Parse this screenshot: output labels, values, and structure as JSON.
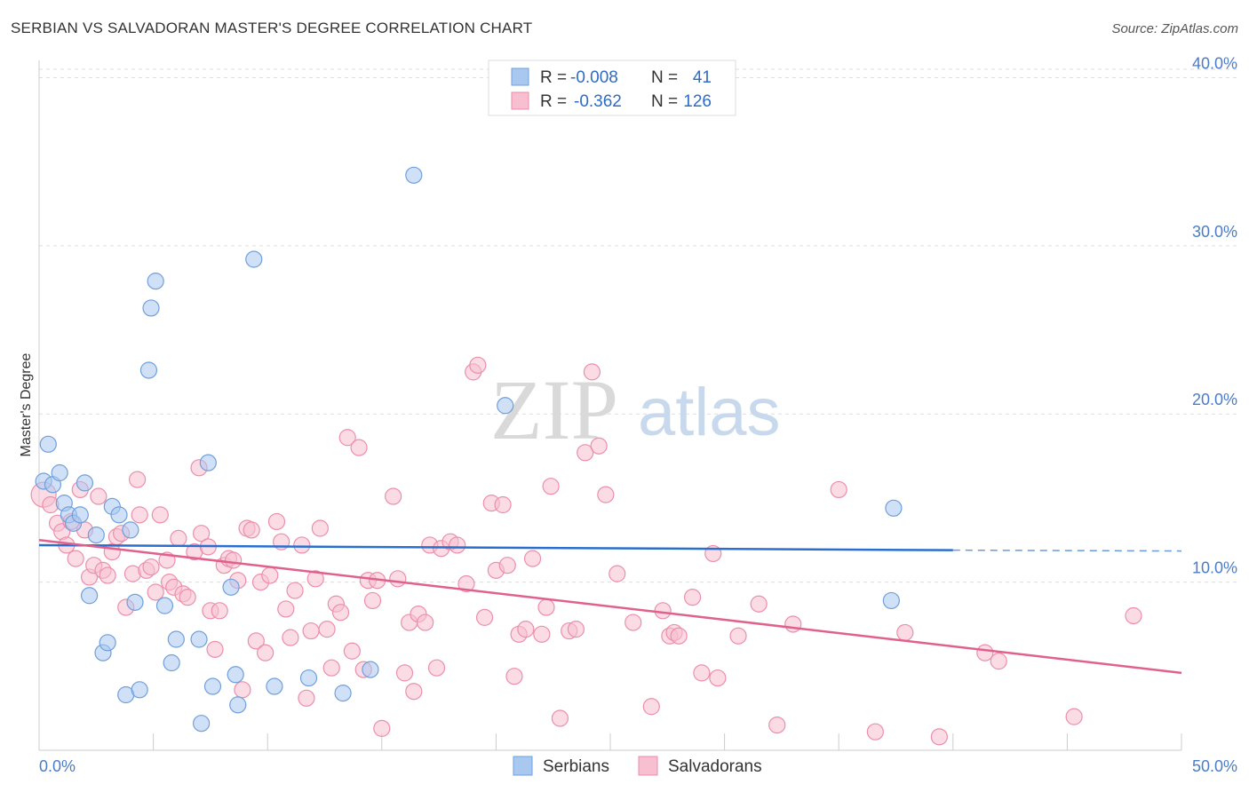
{
  "header": {
    "title": "SERBIAN VS SALVADORAN MASTER'S DEGREE CORRELATION CHART",
    "source": "Source: ZipAtlas.com"
  },
  "watermark": {
    "zip": "ZIP",
    "atlas": "atlas"
  },
  "colors": {
    "serbian_fill": "#a9c8f0",
    "serbian_stroke": "#6f9fdc",
    "serbian_line": "#2b6fce",
    "salvadoran_fill": "#f7bfd0",
    "salvadoran_stroke": "#ec8eab",
    "salvadoran_line": "#e0608e",
    "tick_label": "#4a7cc9",
    "grid": "#dddddd"
  },
  "legend": {
    "r_label": "R =",
    "n_label": "N =",
    "rows": [
      {
        "series": "Serbians",
        "r": "-0.008",
        "n": "41"
      },
      {
        "series": "Salvadorans",
        "r": "-0.362",
        "n": "126"
      }
    ]
  },
  "chart_data": {
    "type": "scatter",
    "title": "SERBIAN VS SALVADORAN MASTER'S DEGREE CORRELATION CHART",
    "xlabel": "",
    "ylabel": "Master's Degree",
    "xlim": [
      0,
      50
    ],
    "ylim": [
      0,
      40.5
    ],
    "x_tick_labels": [
      "0.0%",
      "50.0%"
    ],
    "y_ticks": [
      10,
      20,
      30,
      40
    ],
    "y_tick_labels": [
      "10.0%",
      "20.0%",
      "30.0%",
      "40.0%"
    ],
    "grid": true,
    "legend_position": "top-center",
    "series": [
      {
        "name": "Serbians",
        "r": -0.008,
        "n": 41,
        "trend": {
          "x0": 0,
          "y0": 12.2,
          "x1": 40,
          "y1": 11.9,
          "dashed_to": 50,
          "dashed_y": 11.85
        },
        "points": [
          [
            0.2,
            16.0
          ],
          [
            0.4,
            18.2
          ],
          [
            0.6,
            15.8
          ],
          [
            0.9,
            16.5
          ],
          [
            1.1,
            14.7
          ],
          [
            1.3,
            14.0
          ],
          [
            1.5,
            13.5
          ],
          [
            1.8,
            14.0
          ],
          [
            2.0,
            15.9
          ],
          [
            2.2,
            9.2
          ],
          [
            2.5,
            12.8
          ],
          [
            2.8,
            5.8
          ],
          [
            3.0,
            6.4
          ],
          [
            3.2,
            14.5
          ],
          [
            3.5,
            14.0
          ],
          [
            3.8,
            3.3
          ],
          [
            4.0,
            13.1
          ],
          [
            4.2,
            8.8
          ],
          [
            4.4,
            3.6
          ],
          [
            4.8,
            22.6
          ],
          [
            4.9,
            26.3
          ],
          [
            5.1,
            27.9
          ],
          [
            5.5,
            8.6
          ],
          [
            5.8,
            5.2
          ],
          [
            6.0,
            6.6
          ],
          [
            7.0,
            6.6
          ],
          [
            7.1,
            1.6
          ],
          [
            7.4,
            17.1
          ],
          [
            7.6,
            3.8
          ],
          [
            8.4,
            9.7
          ],
          [
            8.6,
            4.5
          ],
          [
            8.7,
            2.7
          ],
          [
            9.4,
            29.2
          ],
          [
            10.3,
            3.8
          ],
          [
            11.8,
            4.3
          ],
          [
            13.3,
            3.4
          ],
          [
            14.5,
            4.8
          ],
          [
            16.4,
            34.2
          ],
          [
            20.4,
            20.5
          ],
          [
            37.4,
            14.4
          ],
          [
            37.3,
            8.9
          ]
        ]
      },
      {
        "name": "Salvadorans",
        "r": -0.362,
        "n": 126,
        "trend": {
          "x0": 0,
          "y0": 12.5,
          "x1": 50,
          "y1": 4.6
        },
        "points": [
          [
            0.2,
            15.2
          ],
          [
            0.5,
            14.6
          ],
          [
            0.8,
            13.5
          ],
          [
            1.0,
            13.0
          ],
          [
            1.2,
            12.2
          ],
          [
            1.4,
            13.6
          ],
          [
            1.6,
            11.4
          ],
          [
            1.8,
            15.5
          ],
          [
            2.0,
            13.1
          ],
          [
            2.2,
            10.3
          ],
          [
            2.4,
            11.0
          ],
          [
            2.6,
            15.1
          ],
          [
            2.8,
            10.7
          ],
          [
            3.0,
            10.4
          ],
          [
            3.2,
            11.8
          ],
          [
            3.4,
            12.7
          ],
          [
            3.6,
            12.9
          ],
          [
            3.8,
            8.5
          ],
          [
            4.1,
            10.5
          ],
          [
            4.3,
            16.1
          ],
          [
            4.4,
            14.0
          ],
          [
            4.7,
            10.7
          ],
          [
            4.9,
            10.9
          ],
          [
            5.1,
            9.4
          ],
          [
            5.3,
            14.0
          ],
          [
            5.6,
            11.3
          ],
          [
            5.7,
            10.0
          ],
          [
            5.9,
            9.7
          ],
          [
            6.1,
            12.6
          ],
          [
            6.3,
            9.3
          ],
          [
            6.5,
            9.1
          ],
          [
            6.8,
            11.8
          ],
          [
            7.0,
            16.8
          ],
          [
            7.1,
            12.9
          ],
          [
            7.4,
            12.1
          ],
          [
            7.5,
            8.3
          ],
          [
            7.7,
            6.0
          ],
          [
            7.9,
            8.3
          ],
          [
            8.1,
            11.0
          ],
          [
            8.3,
            11.4
          ],
          [
            8.5,
            11.3
          ],
          [
            8.7,
            10.1
          ],
          [
            8.9,
            3.6
          ],
          [
            9.1,
            13.2
          ],
          [
            9.3,
            13.1
          ],
          [
            9.5,
            6.5
          ],
          [
            9.7,
            10.0
          ],
          [
            9.9,
            5.8
          ],
          [
            10.1,
            10.4
          ],
          [
            10.4,
            13.6
          ],
          [
            10.6,
            12.4
          ],
          [
            10.8,
            8.4
          ],
          [
            11.0,
            6.7
          ],
          [
            11.2,
            9.5
          ],
          [
            11.5,
            12.2
          ],
          [
            11.7,
            3.1
          ],
          [
            11.9,
            7.1
          ],
          [
            12.1,
            10.2
          ],
          [
            12.3,
            13.2
          ],
          [
            12.6,
            7.2
          ],
          [
            12.8,
            4.9
          ],
          [
            13.0,
            8.7
          ],
          [
            13.2,
            8.2
          ],
          [
            13.5,
            18.6
          ],
          [
            13.7,
            5.9
          ],
          [
            14.0,
            18.0
          ],
          [
            14.2,
            4.8
          ],
          [
            14.4,
            10.1
          ],
          [
            14.6,
            8.9
          ],
          [
            14.8,
            10.1
          ],
          [
            15.0,
            1.3
          ],
          [
            15.5,
            15.1
          ],
          [
            15.7,
            10.2
          ],
          [
            16.0,
            4.6
          ],
          [
            16.2,
            7.6
          ],
          [
            16.4,
            3.5
          ],
          [
            16.6,
            8.1
          ],
          [
            16.9,
            7.6
          ],
          [
            17.1,
            12.2
          ],
          [
            17.4,
            4.9
          ],
          [
            17.6,
            12.0
          ],
          [
            18.0,
            12.4
          ],
          [
            18.3,
            12.2
          ],
          [
            18.7,
            9.9
          ],
          [
            19.0,
            22.5
          ],
          [
            19.2,
            22.9
          ],
          [
            19.5,
            7.9
          ],
          [
            19.8,
            14.7
          ],
          [
            20.0,
            10.7
          ],
          [
            20.3,
            14.6
          ],
          [
            20.5,
            11.0
          ],
          [
            20.8,
            4.4
          ],
          [
            21.0,
            6.9
          ],
          [
            21.3,
            7.2
          ],
          [
            21.6,
            11.4
          ],
          [
            22.0,
            6.9
          ],
          [
            22.2,
            8.5
          ],
          [
            22.4,
            15.7
          ],
          [
            22.8,
            1.9
          ],
          [
            23.2,
            7.1
          ],
          [
            23.5,
            7.2
          ],
          [
            23.9,
            17.7
          ],
          [
            24.2,
            22.5
          ],
          [
            24.5,
            18.1
          ],
          [
            24.8,
            15.2
          ],
          [
            25.3,
            10.5
          ],
          [
            26.0,
            7.6
          ],
          [
            26.8,
            2.6
          ],
          [
            27.3,
            8.3
          ],
          [
            27.6,
            6.8
          ],
          [
            27.8,
            7.0
          ],
          [
            28.0,
            6.8
          ],
          [
            28.6,
            9.1
          ],
          [
            29.0,
            4.6
          ],
          [
            29.5,
            11.7
          ],
          [
            29.7,
            4.3
          ],
          [
            30.6,
            6.8
          ],
          [
            31.5,
            8.7
          ],
          [
            32.3,
            1.5
          ],
          [
            33.0,
            7.5
          ],
          [
            35.0,
            15.5
          ],
          [
            36.6,
            1.1
          ],
          [
            37.9,
            7.0
          ],
          [
            39.4,
            0.8
          ],
          [
            41.4,
            5.8
          ],
          [
            42.0,
            5.3
          ],
          [
            45.3,
            2.0
          ],
          [
            47.9,
            8.0
          ]
        ]
      }
    ]
  },
  "bottom_legend": [
    {
      "label": "Serbians"
    },
    {
      "label": "Salvadorans"
    }
  ]
}
